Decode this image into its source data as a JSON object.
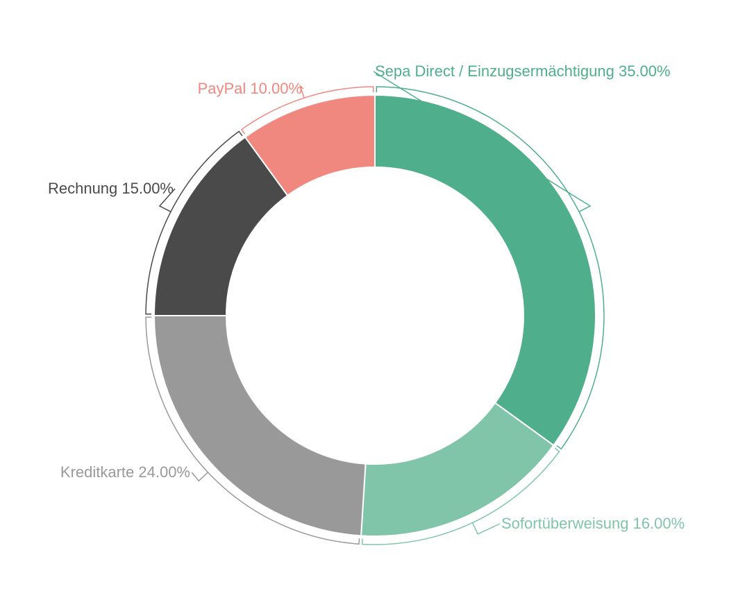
{
  "chart_data": {
    "type": "pie",
    "donut": true,
    "start_angle_deg": 0,
    "direction": "clockwise",
    "labels": [
      "Sepa Direct / Einzugsermächtigung",
      "Sofortüberweisung",
      "Kreditkarte",
      "Rechnung",
      "PayPal"
    ],
    "values": [
      35.0,
      16.0,
      24.0,
      15.0,
      10.0
    ],
    "value_suffix": "%",
    "colors": [
      "#4fae8b",
      "#80c4a9",
      "#999999",
      "#4a4a4a",
      "#f08880"
    ],
    "label_colors": [
      "#4fae8b",
      "#80c4a9",
      "#999999",
      "#4a4a4a",
      "#f08880"
    ],
    "slice_labels": [
      "Sepa Direct / Einzugsermächtigung 35.00%",
      "Sofortüberweisung 16.00%",
      "Kreditkarte 24.00%",
      "Rechnung 15.00%",
      "PayPal 10.00%"
    ],
    "legend": "none",
    "title": ""
  }
}
